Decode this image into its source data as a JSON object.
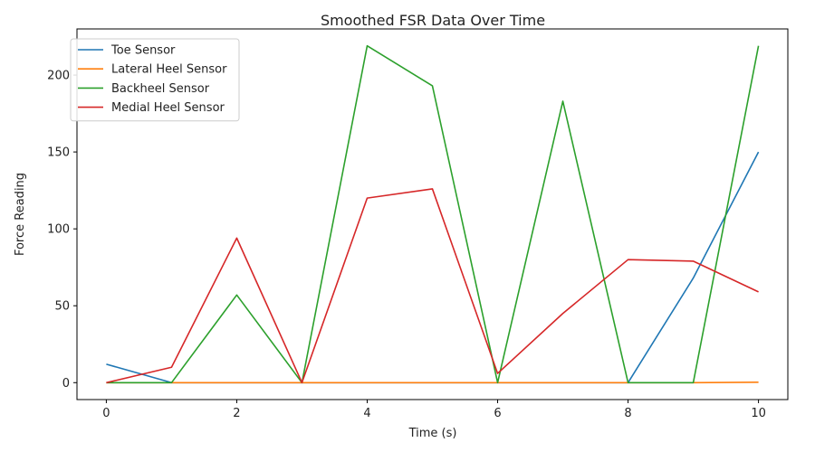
{
  "chart_data": {
    "type": "line",
    "title": "Smoothed FSR Data Over Time",
    "xlabel": "Time (s)",
    "ylabel": "Force Reading",
    "xlim": [
      -0.45,
      10.45
    ],
    "ylim": [
      -11,
      230
    ],
    "xticks": [
      0,
      2,
      4,
      6,
      8,
      10
    ],
    "yticks": [
      0,
      50,
      100,
      150,
      200
    ],
    "grid": false,
    "legend_position": "top-left",
    "x": [
      0,
      1,
      2,
      3,
      4,
      5,
      6,
      7,
      8,
      9,
      10
    ],
    "series": [
      {
        "name": "Toe Sensor",
        "color": "#1f77b4",
        "values": [
          12,
          0,
          0,
          0,
          0,
          0,
          0,
          0,
          0,
          68,
          150
        ]
      },
      {
        "name": "Lateral Heel Sensor",
        "color": "#ff7f0e",
        "values": [
          0,
          0,
          0,
          0,
          0,
          0,
          0,
          0,
          0,
          0,
          0.3
        ]
      },
      {
        "name": "Backheel Sensor",
        "color": "#2ca02c",
        "values": [
          0,
          0,
          57,
          0,
          219,
          193,
          0,
          183,
          0,
          0,
          219
        ]
      },
      {
        "name": "Medial Heel Sensor",
        "color": "#d62728",
        "values": [
          0,
          10,
          94,
          0,
          120,
          126,
          6,
          45,
          80,
          79,
          59
        ]
      }
    ]
  }
}
